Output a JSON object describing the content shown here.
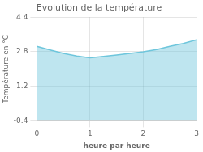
{
  "chart_data": {
    "type": "area",
    "title": "Evolution de la température",
    "xlabel": "heure par heure",
    "ylabel": "Température en °C",
    "x": [
      0,
      0.25,
      0.5,
      0.75,
      1.0,
      1.25,
      1.5,
      1.75,
      2.0,
      2.25,
      2.5,
      2.75,
      3.0
    ],
    "values": [
      3.05,
      2.88,
      2.72,
      2.6,
      2.52,
      2.58,
      2.65,
      2.72,
      2.8,
      2.9,
      3.05,
      3.18,
      3.35
    ],
    "color": "#6ec6dc",
    "xlim": [
      0,
      3
    ],
    "xticks": [
      0,
      1,
      2,
      3
    ],
    "ylim": [
      -0.4,
      4.4
    ],
    "yticks": [
      -0.4,
      1.2,
      2.8,
      4.4
    ],
    "grid": true
  }
}
